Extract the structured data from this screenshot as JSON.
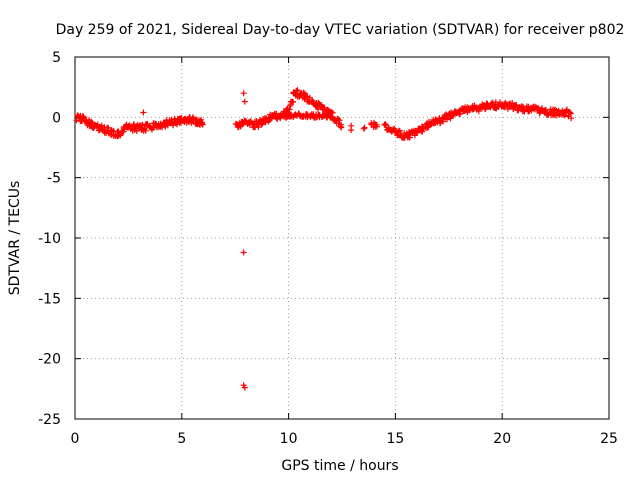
{
  "chart_data": {
    "type": "scatter",
    "title": "Day 259 of 2021, Sidereal Day-to-day VTEC variation (SDTVAR) for receiver p802",
    "xlabel": "GPS time / hours",
    "ylabel": "SDTVAR / TECUs",
    "xlim": [
      0,
      25
    ],
    "ylim": [
      -25,
      5
    ],
    "xticks": [
      0,
      5,
      10,
      15,
      20,
      25
    ],
    "yticks": [
      -25,
      -20,
      -15,
      -10,
      -5,
      0,
      5
    ],
    "grid": true,
    "marker": "+",
    "color": "#ff0000",
    "series": [
      {
        "name": "SDTVAR",
        "outliers": [
          {
            "x": 3.2,
            "y": 0.4
          },
          {
            "x": 7.9,
            "y": 2.0
          },
          {
            "x": 7.95,
            "y": 1.3
          },
          {
            "x": 7.9,
            "y": -11.2
          },
          {
            "x": 7.9,
            "y": -22.2
          },
          {
            "x": 7.95,
            "y": -22.4
          }
        ],
        "trace": [
          {
            "x": 0.1,
            "y": 0.0
          },
          {
            "x": 0.5,
            "y": -0.3
          },
          {
            "x": 1.0,
            "y": -0.8
          },
          {
            "x": 1.5,
            "y": -1.1
          },
          {
            "x": 2.0,
            "y": -1.4
          },
          {
            "x": 2.5,
            "y": -0.8
          },
          {
            "x": 3.0,
            "y": -0.9
          },
          {
            "x": 3.5,
            "y": -0.8
          },
          {
            "x": 4.0,
            "y": -0.6
          },
          {
            "x": 4.5,
            "y": -0.4
          },
          {
            "x": 5.0,
            "y": -0.3
          },
          {
            "x": 5.5,
            "y": -0.2
          },
          {
            "x": 6.0,
            "y": -0.5
          },
          {
            "x": 7.5,
            "y": -0.8
          },
          {
            "x": 8.0,
            "y": -0.5
          },
          {
            "x": 8.5,
            "y": -0.6
          },
          {
            "x": 9.0,
            "y": -0.1
          },
          {
            "x": 9.5,
            "y": 0.1
          },
          {
            "x": 10.0,
            "y": 0.6
          },
          {
            "x": 10.3,
            "y": 2.1
          },
          {
            "x": 10.7,
            "y": 1.8
          },
          {
            "x": 11.0,
            "y": 1.4
          },
          {
            "x": 11.5,
            "y": 0.8
          },
          {
            "x": 12.0,
            "y": 0.3
          },
          {
            "x": 12.5,
            "y": -0.7
          },
          {
            "x": 13.0,
            "y": -0.8
          },
          {
            "x": 13.5,
            "y": -0.9
          },
          {
            "x": 14.0,
            "y": -0.7
          },
          {
            "x": 14.5,
            "y": -0.8
          },
          {
            "x": 15.0,
            "y": -1.2
          },
          {
            "x": 15.5,
            "y": -1.6
          },
          {
            "x": 16.0,
            "y": -1.2
          },
          {
            "x": 16.5,
            "y": -0.7
          },
          {
            "x": 17.0,
            "y": -0.3
          },
          {
            "x": 17.5,
            "y": 0.1
          },
          {
            "x": 18.0,
            "y": 0.4
          },
          {
            "x": 18.5,
            "y": 0.7
          },
          {
            "x": 19.0,
            "y": 0.8
          },
          {
            "x": 19.5,
            "y": 1.0
          },
          {
            "x": 20.0,
            "y": 1.0
          },
          {
            "x": 20.5,
            "y": 0.9
          },
          {
            "x": 21.0,
            "y": 0.7
          },
          {
            "x": 21.5,
            "y": 0.6
          },
          {
            "x": 22.0,
            "y": 0.5
          },
          {
            "x": 22.5,
            "y": 0.4
          },
          {
            "x": 23.0,
            "y": 0.4
          },
          {
            "x": 23.2,
            "y": 0.2
          }
        ],
        "secondary_trace": [
          {
            "x": 9.8,
            "y": 0.1
          },
          {
            "x": 10.5,
            "y": 0.2
          },
          {
            "x": 11.0,
            "y": 0.1
          },
          {
            "x": 11.5,
            "y": 0.1
          },
          {
            "x": 12.0,
            "y": 0.1
          }
        ],
        "gaps": [
          [
            6.0,
            7.5
          ],
          [
            12.5,
            12.9
          ],
          [
            13.0,
            13.5
          ],
          [
            13.6,
            13.9
          ],
          [
            14.2,
            14.5
          ]
        ]
      }
    ]
  }
}
